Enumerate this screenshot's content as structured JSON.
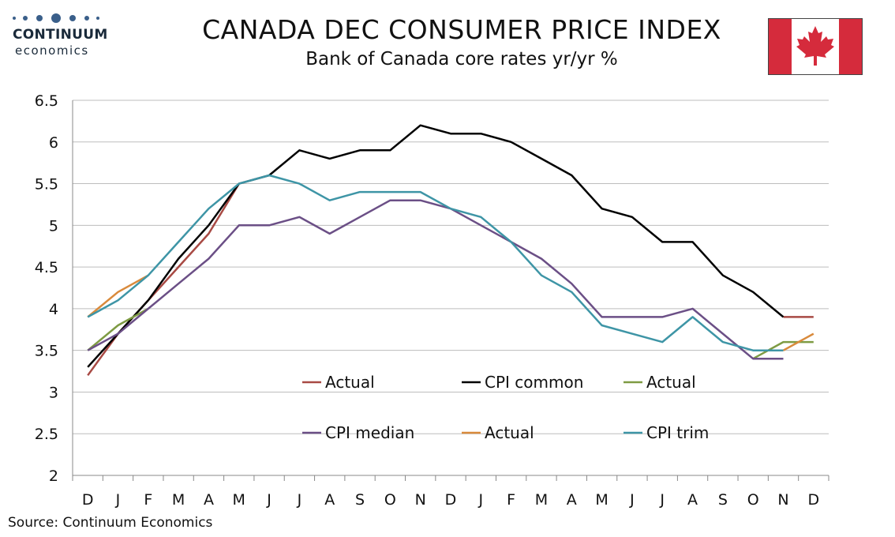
{
  "header": {
    "title": "CANADA DEC CONSUMER PRICE INDEX",
    "subtitle": "Bank of Canada core rates yr/yr %"
  },
  "logo": {
    "line1": "CONTINUUM",
    "line2": "economics",
    "color": "#3a5f8a"
  },
  "source": "Source: Continuum Economics",
  "flag": {
    "red": "#d52b3c",
    "white": "#ffffff"
  },
  "chart_data": {
    "type": "line",
    "categories": [
      "D",
      "J",
      "F",
      "M",
      "A",
      "M",
      "J",
      "J",
      "A",
      "S",
      "O",
      "N",
      "D",
      "J",
      "F",
      "M",
      "A",
      "M",
      "J",
      "J",
      "A",
      "S",
      "O",
      "N",
      "D"
    ],
    "ylim": [
      2,
      6.5
    ],
    "yticks": [
      "6.5",
      "6",
      "5.5",
      "5",
      "4.5",
      "4",
      "3.5",
      "3",
      "2.5",
      "2"
    ],
    "grid": true,
    "legend_placement": "inside-bottom",
    "series": [
      {
        "name": "Actual",
        "color": "#a84a44",
        "values": [
          3.2,
          3.7,
          4.1,
          4.5,
          4.9,
          5.5,
          null,
          null,
          null,
          null,
          null,
          null,
          null,
          null,
          null,
          null,
          null,
          null,
          null,
          null,
          null,
          null,
          null,
          3.9,
          3.9
        ]
      },
      {
        "name": "CPI common",
        "color": "#000000",
        "values": [
          3.3,
          3.7,
          4.1,
          4.6,
          5.0,
          5.5,
          5.6,
          5.9,
          5.8,
          5.9,
          5.9,
          6.2,
          6.1,
          6.1,
          6.0,
          5.8,
          5.6,
          5.2,
          5.1,
          4.8,
          4.8,
          4.4,
          4.2,
          3.9,
          null
        ]
      },
      {
        "name": "Actual",
        "color": "#7e9b43",
        "values": [
          3.5,
          3.8,
          4.0,
          null,
          null,
          null,
          null,
          null,
          null,
          null,
          null,
          null,
          null,
          null,
          null,
          null,
          null,
          null,
          null,
          null,
          null,
          null,
          3.4,
          3.6,
          3.6
        ]
      },
      {
        "name": "CPI median",
        "color": "#6b4f86",
        "values": [
          3.5,
          3.7,
          4.0,
          4.3,
          4.6,
          5.0,
          5.0,
          5.1,
          4.9,
          5.1,
          5.3,
          5.3,
          5.2,
          5.0,
          4.8,
          4.6,
          4.3,
          3.9,
          3.9,
          3.9,
          4.0,
          3.7,
          3.4,
          3.4,
          null
        ]
      },
      {
        "name": "Actual",
        "color": "#d98a3c",
        "values": [
          3.9,
          4.2,
          4.4,
          null,
          null,
          null,
          null,
          null,
          null,
          null,
          null,
          null,
          null,
          null,
          null,
          null,
          null,
          null,
          null,
          null,
          null,
          null,
          null,
          3.5,
          3.7
        ]
      },
      {
        "name": "CPI trim",
        "color": "#3e95a6",
        "values": [
          3.9,
          4.1,
          4.4,
          4.8,
          5.2,
          5.5,
          5.6,
          5.5,
          5.3,
          5.4,
          5.4,
          5.4,
          5.2,
          5.1,
          4.8,
          4.4,
          4.2,
          3.8,
          3.7,
          3.6,
          3.9,
          3.6,
          3.5,
          3.5,
          null
        ]
      }
    ]
  }
}
